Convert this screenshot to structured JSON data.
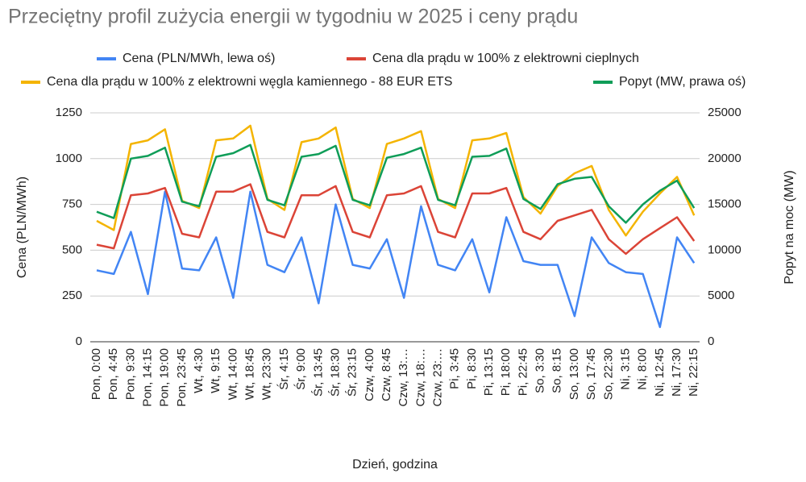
{
  "chart_data": {
    "type": "line",
    "title": "Przeciętny profil zużycia energii w tygodniu w 2025 i ceny prądu",
    "x_label": "Dzień, godzina",
    "y_label": "Cena (PLN/MWh)",
    "y2_label": "Popyt na moc (MW)",
    "categories": [
      "Pon, 0:00",
      "Pon, 4:45",
      "Pon, 9:30",
      "Pon, 14:15",
      "Pon, 19:00",
      "Pon, 23:45",
      "Wt, 4:30",
      "Wt, 9:15",
      "Wt, 14:00",
      "Wt, 18:45",
      "Wt, 23:30",
      "Śr, 4:15",
      "Śr, 9:00",
      "Śr, 13:45",
      "Śr, 18:30",
      "Śr, 23:15",
      "Czw, 4:00",
      "Czw, 8:45",
      "Czw, 13:…",
      "Czw, 18:…",
      "Czw, 23:…",
      "Pi, 3:45",
      "Pi, 8:30",
      "Pi, 13:15",
      "Pi, 18:00",
      "Pi, 22:45",
      "So, 3:30",
      "So, 8:15",
      "So, 13:00",
      "So, 17:45",
      "So, 22:30",
      "Ni, 3:15",
      "Ni, 8:00",
      "Ni, 12:45",
      "Ni, 17:30",
      "Ni, 22:15"
    ],
    "series": [
      {
        "name": "Cena (PLN/MWh, lewa oś)",
        "color": "#4285f4",
        "values": [
          390,
          370,
          600,
          260,
          820,
          400,
          390,
          570,
          240,
          820,
          420,
          380,
          570,
          210,
          750,
          420,
          400,
          560,
          240,
          740,
          420,
          390,
          560,
          270,
          680,
          440,
          420,
          420,
          140,
          570,
          430,
          380,
          370,
          80,
          570,
          430
        ]
      },
      {
        "name": "Cena dla prądu w 100% z elektrowni cieplnych",
        "color": "#db4437",
        "values": [
          530,
          510,
          800,
          810,
          840,
          590,
          570,
          820,
          820,
          860,
          600,
          570,
          800,
          800,
          850,
          600,
          570,
          800,
          810,
          850,
          600,
          570,
          810,
          810,
          840,
          600,
          560,
          660,
          690,
          720,
          560,
          480,
          560,
          620,
          680,
          550
        ]
      },
      {
        "name": "Cena dla prądu w 100% z elektrowni węgla kamiennego - 88 EUR ETS",
        "color": "#f4b400",
        "values": [
          660,
          610,
          1080,
          1100,
          1160,
          770,
          730,
          1100,
          1110,
          1180,
          780,
          720,
          1090,
          1110,
          1170,
          780,
          730,
          1080,
          1110,
          1150,
          780,
          730,
          1100,
          1110,
          1140,
          790,
          700,
          850,
          920,
          960,
          720,
          580,
          710,
          810,
          900,
          690
        ]
      },
      {
        "name": "Popyt (MW, prawa oś)",
        "color": "#0f9d58",
        "axis": "y2",
        "values": [
          14200,
          13500,
          20000,
          20300,
          21200,
          15300,
          14800,
          20200,
          20600,
          21500,
          15500,
          14900,
          20200,
          20500,
          21400,
          15500,
          14900,
          20100,
          20500,
          21200,
          15500,
          14900,
          20200,
          20300,
          21100,
          15600,
          14500,
          17200,
          17800,
          18000,
          14800,
          13000,
          15000,
          16500,
          17600,
          14600
        ]
      }
    ],
    "ylim": [
      0,
      1250
    ],
    "yticks": [
      0,
      250,
      500,
      750,
      1000,
      1250
    ],
    "y2lim": [
      0,
      25000
    ],
    "y2ticks": [
      0,
      5000,
      10000,
      15000,
      20000,
      25000
    ],
    "grid": true,
    "legend": "top"
  }
}
